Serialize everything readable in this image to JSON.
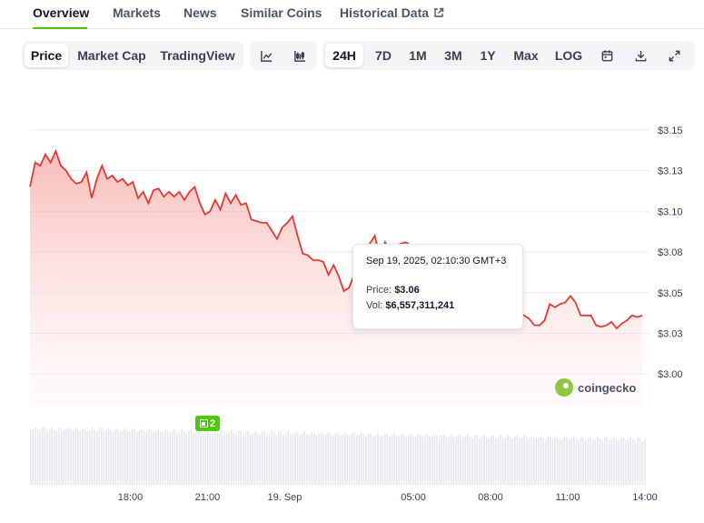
{
  "nav": {
    "tabs": [
      {
        "label": "Overview",
        "active": true
      },
      {
        "label": "Markets",
        "active": false
      },
      {
        "label": "News",
        "active": false
      },
      {
        "label": "Similar Coins",
        "active": false
      },
      {
        "label": "Historical Data",
        "active": false,
        "icon": "external-link-icon"
      }
    ]
  },
  "toolbar": {
    "metric_tabs": [
      "Price",
      "Market Cap",
      "TradingView"
    ],
    "metric_active": "Price",
    "chart_style_icons": [
      "line-chart-icon",
      "candlestick-chart-icon"
    ],
    "ranges": [
      "24H",
      "7D",
      "1M",
      "3M",
      "1Y",
      "Max",
      "LOG"
    ],
    "range_active": "24H",
    "action_icons": [
      "calendar-icon",
      "download-icon",
      "expand-icon"
    ]
  },
  "tooltip": {
    "date": "Sep 19, 2025, 02:10:30 GMT+3",
    "price_label": "Price:",
    "price_value": "$3.06",
    "vol_label": "Vol:",
    "vol_value": "$6,557,311,241"
  },
  "watermark": "coingecko",
  "event_badge": "2",
  "colors": {
    "line": "#e53935",
    "fill": "#fdd4d2",
    "volume": "#e5e7eb",
    "accent": "#4bcc00"
  },
  "chart_data": {
    "type": "area",
    "title": "",
    "ylim": [
      2.98,
      3.16
    ],
    "y_ticks": [
      "$3.15",
      "$3.13",
      "$3.10",
      "$3.08",
      "$3.05",
      "$3.03",
      "$3.00"
    ],
    "y_tick_values": [
      3.15,
      3.125,
      3.1,
      3.075,
      3.05,
      3.025,
      3.0
    ],
    "x_ticks": [
      "18:00",
      "21:00",
      "19. Sep",
      "05:00",
      "08:00",
      "11:00",
      "14:00"
    ],
    "x_tick_hours": [
      3,
      6,
      9,
      14,
      17,
      20,
      23
    ],
    "xlim_hours": [
      -0.9,
      23.0
    ],
    "grid": true,
    "series": [
      {
        "x": [
          -0.9,
          -0.7,
          -0.5,
          -0.3,
          -0.1,
          0.1,
          0.3,
          0.5,
          0.7,
          0.9,
          1.1,
          1.3,
          1.5,
          1.7,
          1.9,
          2.1,
          2.3,
          2.5,
          2.7,
          2.9,
          3.1,
          3.3,
          3.5,
          3.7,
          3.9,
          4.1,
          4.3,
          4.5,
          4.7,
          4.9,
          5.1,
          5.3,
          5.5,
          5.7,
          5.9,
          6.1,
          6.3,
          6.5,
          6.7,
          6.9,
          7.1,
          7.3,
          7.5,
          7.7,
          7.9,
          8.1,
          8.3,
          8.5,
          8.7,
          8.9,
          9.1,
          9.3,
          9.5,
          9.7,
          9.9,
          10.1,
          10.3,
          10.5,
          10.7,
          10.9,
          11.1,
          11.3,
          11.5,
          11.7,
          11.9,
          12.1,
          12.3,
          12.5,
          12.7,
          12.9,
          13.1,
          13.3,
          13.5,
          13.7,
          13.9,
          14.1,
          14.3,
          14.5,
          14.7,
          14.9,
          15.1,
          15.3,
          15.5,
          15.7,
          15.9,
          16.1,
          16.3,
          16.5,
          16.7,
          16.9,
          17.1,
          17.3,
          17.5,
          17.7,
          17.9,
          18.1,
          18.3,
          18.5,
          18.7,
          18.9,
          19.1,
          19.3,
          19.5,
          19.7,
          19.9,
          20.1,
          20.3,
          20.5,
          20.7,
          20.9,
          21.1,
          21.3,
          21.5,
          21.7,
          21.9,
          22.1,
          22.3,
          22.5,
          22.7,
          22.9
        ],
        "values": [
          3.115,
          3.13,
          3.128,
          3.135,
          3.13,
          3.137,
          3.128,
          3.125,
          3.12,
          3.117,
          3.118,
          3.124,
          3.108,
          3.12,
          3.128,
          3.12,
          3.122,
          3.118,
          3.12,
          3.116,
          3.118,
          3.108,
          3.112,
          3.105,
          3.113,
          3.114,
          3.109,
          3.112,
          3.109,
          3.112,
          3.107,
          3.112,
          3.115,
          3.105,
          3.098,
          3.1,
          3.107,
          3.101,
          3.111,
          3.105,
          3.11,
          3.104,
          3.105,
          3.095,
          3.094,
          3.093,
          3.093,
          3.088,
          3.083,
          3.09,
          3.093,
          3.097,
          3.085,
          3.074,
          3.073,
          3.07,
          3.07,
          3.069,
          3.061,
          3.067,
          3.06,
          3.051,
          3.053,
          3.061,
          3.07,
          3.077,
          3.08,
          3.085,
          3.072,
          3.081,
          3.073,
          3.079,
          3.08,
          3.081,
          3.079,
          3.07,
          3.066,
          3.066,
          3.062,
          3.062,
          3.062,
          3.06,
          3.058,
          3.058,
          3.033,
          3.032,
          3.038,
          3.04,
          3.046,
          3.047,
          3.041,
          3.045,
          3.043,
          3.048,
          3.039,
          3.037,
          3.036,
          3.034,
          3.03,
          3.03,
          3.033,
          3.043,
          3.041,
          3.043,
          3.044,
          3.048,
          3.044,
          3.036,
          3.036,
          3.036,
          3.03,
          3.029,
          3.03,
          3.032,
          3.028,
          3.031,
          3.033,
          3.036,
          3.035,
          3.036
        ]
      }
    ]
  }
}
